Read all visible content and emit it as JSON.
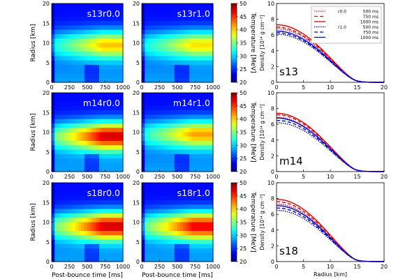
{
  "chart_data": {
    "type": "heatmap",
    "colorbar": {
      "label": "Temperature [MeV]",
      "range": [
        20,
        50
      ],
      "ticks": [
        "20",
        "25",
        "30",
        "35",
        "40",
        "45",
        "50"
      ]
    },
    "heatmap_axes": {
      "xlabel": "Post-bounce time [ms]",
      "ylabel": "Radius [km]",
      "xlim": [
        0,
        1000
      ],
      "ylim": [
        0,
        20
      ],
      "xticks": [
        "0",
        "250",
        "500",
        "750",
        "1000"
      ],
      "yticks": [
        "0",
        "5",
        "10",
        "15",
        "20"
      ]
    },
    "density_axes": {
      "xlabel": "Radius [km]",
      "ylabel": "Density [10¹⁴ g cm⁻³]",
      "xlim": [
        0,
        20
      ],
      "ylim": [
        0,
        10
      ],
      "xticks": [
        "0",
        "5",
        "10",
        "15",
        "20"
      ],
      "yticks": [
        "0",
        "2",
        "4",
        "6",
        "8",
        "10"
      ]
    },
    "legend": {
      "groups": [
        {
          "label": "r0.0",
          "color": "#dd0000"
        },
        {
          "label": "r1.0",
          "color": "#0000cc"
        }
      ],
      "times": [
        "500 ms",
        "750 ms",
        "1000 ms"
      ]
    },
    "rows": [
      {
        "model": "s13",
        "heatmaps": [
          {
            "label": "s13r0.0",
            "peak": 38,
            "core_r": 9.5
          },
          {
            "label": "s13r1.0",
            "peak": 37,
            "core_r": 9.5
          }
        ],
        "density": {
          "r0": {
            "r500": [
              0,
              6.8
            ],
            "r750": [
              0,
              7.0
            ],
            "r1000": [
              0,
              7.3
            ]
          },
          "r1": {
            "r500": [
              0,
              6.1
            ],
            "r750": [
              0,
              6.3
            ],
            "r1000": [
              0,
              6.5
            ]
          }
        }
      },
      {
        "model": "m14",
        "heatmaps": [
          {
            "label": "m14r0.0",
            "peak": 45,
            "core_r": 9.0
          },
          {
            "label": "m14r1.0",
            "peak": 39,
            "core_r": 9.5
          }
        ],
        "density": {
          "r0": {
            "r500": [
              0,
              6.9
            ],
            "r750": [
              0,
              7.2
            ],
            "r1000": [
              0,
              7.4
            ]
          },
          "r1": {
            "r500": [
              0,
              6.2
            ],
            "r750": [
              0,
              6.5
            ],
            "r1000": [
              0,
              6.8
            ]
          }
        }
      },
      {
        "model": "s18",
        "heatmaps": [
          {
            "label": "s18r0.0",
            "peak": 45,
            "core_r": 9.0
          },
          {
            "label": "s18r1.0",
            "peak": 44,
            "core_r": 9.0
          }
        ],
        "density": {
          "r0": {
            "r500": [
              0,
              7.3
            ],
            "r750": [
              0,
              7.6
            ],
            "r1000": [
              0,
              7.9
            ]
          },
          "r1": {
            "r500": [
              0,
              6.5
            ],
            "r750": [
              0,
              6.8
            ],
            "r1000": [
              0,
              7.1
            ]
          }
        }
      }
    ]
  }
}
